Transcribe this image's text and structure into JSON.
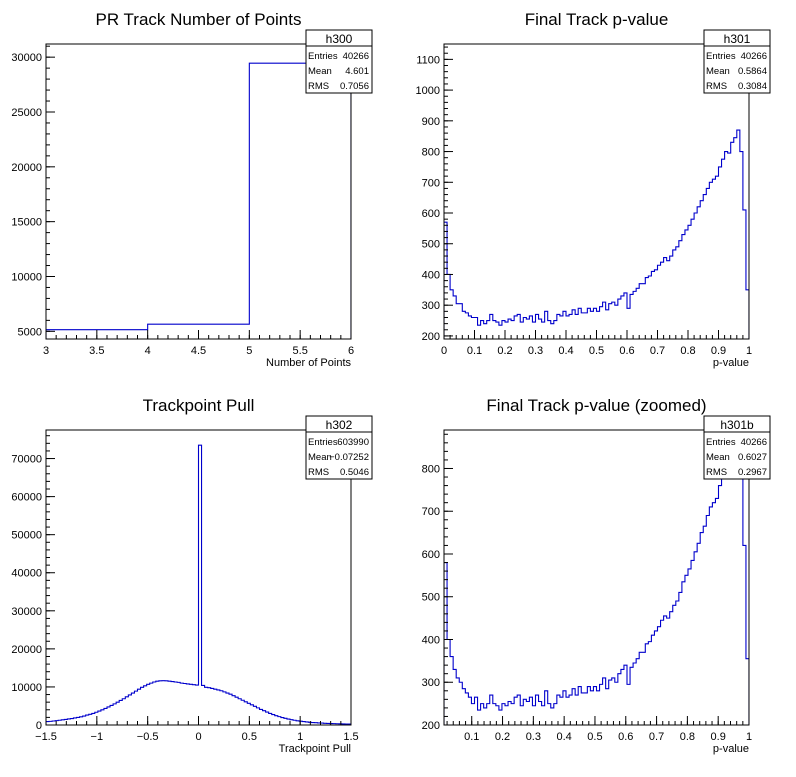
{
  "chart_data": [
    {
      "type": "histogram",
      "title": "PR Track Number of Points",
      "xlabel": "Number of Points",
      "ylabel": "",
      "xlim": [
        3,
        6
      ],
      "ylim": [
        4300,
        31200
      ],
      "xticks": [
        "3",
        "3.5",
        "4",
        "4.5",
        "5",
        "5.5",
        "6"
      ],
      "xtick_values": [
        3,
        3.5,
        4,
        4.5,
        5,
        5.5,
        6
      ],
      "yticks": [
        "5000",
        "10000",
        "15000",
        "20000",
        "25000",
        "30000"
      ],
      "ytick_values": [
        5000,
        10000,
        15000,
        20000,
        25000,
        30000
      ],
      "bin_edges": [
        3,
        4,
        5,
        6
      ],
      "values": [
        5150,
        5650,
        29450
      ],
      "stats": {
        "name": "h300",
        "entries": "40266",
        "mean": "4.601",
        "rms": "0.7056"
      }
    },
    {
      "type": "histogram",
      "title": "Final Track p-value",
      "xlabel": "p-value",
      "ylabel": "",
      "xlim": [
        0,
        1
      ],
      "ylim": [
        190,
        1150
      ],
      "xticks": [
        "0",
        "0.1",
        "0.2",
        "0.3",
        "0.4",
        "0.5",
        "0.6",
        "0.7",
        "0.8",
        "0.9",
        "1"
      ],
      "xtick_values": [
        0,
        0.1,
        0.2,
        0.3,
        0.4,
        0.5,
        0.6,
        0.7,
        0.8,
        0.9,
        1
      ],
      "yticks": [
        "200",
        "300",
        "400",
        "500",
        "600",
        "700",
        "800",
        "900",
        "1000",
        "1100"
      ],
      "ytick_values": [
        200,
        300,
        400,
        500,
        600,
        700,
        800,
        900,
        1000,
        1100
      ],
      "bin_edges_range": [
        0,
        1
      ],
      "values": [
        570,
        400,
        350,
        330,
        305,
        305,
        280,
        275,
        265,
        260,
        260,
        235,
        250,
        240,
        250,
        270,
        250,
        245,
        235,
        250,
        245,
        255,
        250,
        265,
        270,
        245,
        260,
        255,
        265,
        245,
        270,
        255,
        245,
        280,
        250,
        240,
        250,
        270,
        265,
        280,
        265,
        270,
        285,
        270,
        290,
        275,
        275,
        290,
        280,
        290,
        280,
        295,
        310,
        285,
        305,
        310,
        300,
        320,
        330,
        340,
        290,
        335,
        345,
        355,
        370,
        370,
        390,
        395,
        410,
        415,
        430,
        440,
        455,
        445,
        460,
        480,
        490,
        510,
        530,
        545,
        560,
        580,
        600,
        620,
        640,
        660,
        680,
        700,
        710,
        720,
        750,
        775,
        800,
        795,
        830,
        845,
        870,
        800,
        610,
        350
      ],
      "stats": {
        "name": "h301",
        "entries": "40266",
        "mean": "0.5864",
        "rms": "0.3084"
      }
    },
    {
      "type": "histogram",
      "title": "Trackpoint Pull",
      "xlabel": "Trackpoint Pull",
      "ylabel": "",
      "xlim": [
        -1.5,
        1.5
      ],
      "ylim": [
        0,
        77500
      ],
      "xticks": [
        "−1.5",
        "−1",
        "−0.5",
        "0",
        "0.5",
        "1",
        "1.5"
      ],
      "xtick_values": [
        -1.5,
        -1,
        -0.5,
        0,
        0.5,
        1,
        1.5
      ],
      "yticks": [
        "0",
        "10000",
        "20000",
        "30000",
        "40000",
        "50000",
        "60000",
        "70000"
      ],
      "ytick_values": [
        0,
        10000,
        20000,
        30000,
        40000,
        50000,
        60000,
        70000
      ],
      "bin_edges_range": [
        -1.5,
        1.5
      ],
      "values": [
        900,
        950,
        1050,
        1150,
        1250,
        1350,
        1450,
        1600,
        1700,
        1850,
        2000,
        2150,
        2350,
        2600,
        2800,
        3050,
        3350,
        3650,
        4000,
        4350,
        4750,
        5150,
        5550,
        6000,
        6450,
        6900,
        7400,
        7900,
        8400,
        8900,
        9400,
        9900,
        10300,
        10700,
        11000,
        11300,
        11500,
        11600,
        11650,
        11600,
        11500,
        11400,
        11300,
        11200,
        11000,
        10900,
        10800,
        10700,
        10600,
        10500,
        73500,
        10400,
        9900,
        9800,
        9600,
        9400,
        9200,
        9000,
        8700,
        8400,
        8100,
        7700,
        7300,
        6900,
        6500,
        6100,
        5700,
        5300,
        4900,
        4500,
        4100,
        3750,
        3400,
        3050,
        2750,
        2450,
        2200,
        1950,
        1750,
        1550,
        1400,
        1250,
        1100,
        1000,
        900,
        800,
        700,
        650,
        600,
        550,
        500,
        450,
        420,
        390,
        360,
        330,
        300,
        280,
        260,
        240
      ],
      "stats": {
        "name": "h302",
        "entries": "603990",
        "mean": "−0.07252",
        "rms": "0.5046"
      }
    },
    {
      "type": "histogram",
      "title": "Final Track p-value (zoomed)",
      "xlabel": "p-value",
      "ylabel": "",
      "xlim": [
        0.01,
        1
      ],
      "ylim": [
        200,
        890
      ],
      "xticks": [
        "0.1",
        "0.2",
        "0.3",
        "0.4",
        "0.5",
        "0.6",
        "0.7",
        "0.8",
        "0.9",
        "1"
      ],
      "xtick_values": [
        0.1,
        0.2,
        0.3,
        0.4,
        0.5,
        0.6,
        0.7,
        0.8,
        0.9,
        1
      ],
      "yticks": [
        "200",
        "300",
        "400",
        "500",
        "600",
        "700",
        "800"
      ],
      "ytick_values": [
        200,
        300,
        400,
        500,
        600,
        700,
        800
      ],
      "bin_edges_range": [
        0.01,
        1
      ],
      "values": [
        580,
        400,
        360,
        330,
        310,
        300,
        285,
        275,
        265,
        250,
        265,
        235,
        250,
        240,
        250,
        270,
        250,
        245,
        235,
        250,
        245,
        255,
        250,
        265,
        270,
        245,
        260,
        255,
        265,
        245,
        270,
        255,
        245,
        280,
        250,
        240,
        250,
        270,
        265,
        280,
        265,
        270,
        285,
        270,
        290,
        275,
        275,
        290,
        280,
        290,
        280,
        295,
        310,
        285,
        305,
        310,
        300,
        320,
        330,
        340,
        295,
        335,
        345,
        355,
        370,
        370,
        390,
        395,
        410,
        420,
        430,
        445,
        455,
        450,
        465,
        480,
        490,
        510,
        535,
        550,
        565,
        585,
        605,
        625,
        650,
        665,
        690,
        710,
        720,
        730,
        760,
        780,
        800,
        800,
        830,
        850,
        880,
        810,
        620,
        355
      ],
      "stats": {
        "name": "h301b",
        "entries": "40266",
        "mean": "0.6027",
        "rms": "0.2967"
      }
    }
  ],
  "stats_labels": {
    "entries": "Entries",
    "mean": "Mean",
    "rms": "RMS"
  },
  "colors": {
    "histogram": "#0000cc",
    "axes": "#000000",
    "background": "#ffffff"
  }
}
